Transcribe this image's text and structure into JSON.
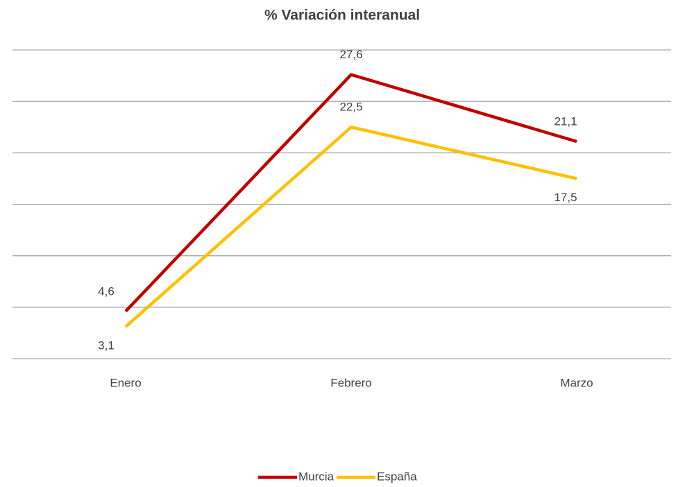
{
  "chart_data": {
    "type": "line",
    "title": "% Variación interanual",
    "categories": [
      "Enero",
      "Febrero",
      "Marzo"
    ],
    "series": [
      {
        "name": "Murcia",
        "color": "#c00000",
        "values": [
          4.6,
          27.6,
          21.1
        ],
        "value_labels": [
          "4,6",
          "27,6",
          "21,1"
        ]
      },
      {
        "name": "España",
        "color": "#ffc000",
        "values": [
          3.1,
          22.5,
          17.5
        ],
        "value_labels": [
          "3,1",
          "22,5",
          "17,5"
        ]
      }
    ],
    "ylim": [
      0,
      30
    ],
    "yticks": [
      0,
      5,
      10,
      15,
      20,
      25,
      30
    ],
    "grid": true,
    "legend": "bottom"
  }
}
